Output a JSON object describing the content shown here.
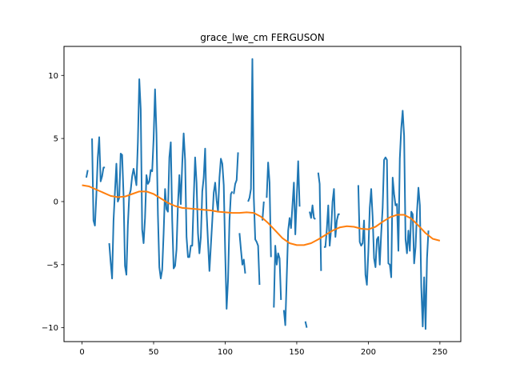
{
  "chart_data": {
    "type": "line",
    "title": "grace_lwe_cm FERGUSON",
    "xlabel": "",
    "ylabel": "",
    "xlim": [
      -12.6,
      264.6
    ],
    "ylim": [
      -11.1,
      12.3
    ],
    "xticks": [
      0,
      50,
      100,
      150,
      200,
      250
    ],
    "yticks": [
      -10,
      -5,
      0,
      5,
      10
    ],
    "grid": false,
    "legend": "none",
    "series": [
      {
        "color": "#1f77b4",
        "segments": [
          [
            [
              3,
              1.9
            ],
            [
              4,
              2.5
            ]
          ],
          [
            [
              7,
              5.0
            ],
            [
              8,
              -1.5
            ],
            [
              9,
              -1.9
            ],
            [
              10,
              0.5
            ],
            [
              11,
              3.5
            ],
            [
              12,
              5.1
            ],
            [
              13,
              1.6
            ],
            [
              14,
              2.0
            ],
            [
              15,
              2.7
            ],
            [
              16,
              2.7
            ]
          ],
          [
            [
              19,
              -3.3
            ],
            [
              20,
              -4.8
            ],
            [
              21,
              -6.1
            ],
            [
              22,
              -1.5
            ],
            [
              23,
              0.8
            ],
            [
              24,
              3.0
            ],
            [
              25,
              0.0
            ],
            [
              26,
              0.3
            ],
            [
              27,
              3.8
            ],
            [
              28,
              3.7
            ],
            [
              29,
              0.5
            ],
            [
              30,
              -5.1
            ],
            [
              31,
              -5.8
            ],
            [
              32,
              -1.9
            ],
            [
              33,
              0.5
            ],
            [
              34,
              0.9
            ],
            [
              35,
              2.0
            ],
            [
              36,
              2.6
            ],
            [
              37,
              2.0
            ],
            [
              38,
              1.3
            ],
            [
              39,
              4.7
            ],
            [
              40,
              9.7
            ],
            [
              41,
              7.3
            ],
            [
              42,
              -2.2
            ],
            [
              43,
              -3.3
            ],
            [
              44,
              -1.3
            ],
            [
              45,
              2.1
            ],
            [
              46,
              1.4
            ],
            [
              47,
              1.6
            ],
            [
              48,
              2.5
            ],
            [
              49,
              2.4
            ],
            [
              50,
              5.0
            ],
            [
              51,
              8.9
            ],
            [
              52,
              5.4
            ],
            [
              53,
              -1.0
            ],
            [
              54,
              -5.2
            ],
            [
              55,
              -6.1
            ],
            [
              56,
              -5.4
            ],
            [
              57,
              -2.5
            ],
            [
              58,
              1.0
            ],
            [
              59,
              -0.6
            ],
            [
              60,
              -0.8
            ],
            [
              61,
              3.5
            ],
            [
              62,
              4.7
            ],
            [
              63,
              -1.5
            ],
            [
              64,
              -5.3
            ],
            [
              65,
              -5.1
            ],
            [
              66,
              -3.8
            ],
            [
              67,
              -0.2
            ],
            [
              68,
              2.1
            ],
            [
              69,
              -0.2
            ],
            [
              70,
              3.0
            ],
            [
              71,
              5.4
            ],
            [
              72,
              3.3
            ],
            [
              73,
              -2.8
            ],
            [
              74,
              -4.4
            ],
            [
              75,
              -4.4
            ],
            [
              76,
              -3.5
            ],
            [
              77,
              -3.5
            ],
            [
              78,
              0.2
            ],
            [
              79,
              3.5
            ],
            [
              80,
              1.5
            ],
            [
              81,
              -2.5
            ],
            [
              82,
              -4.1
            ],
            [
              83,
              -2.8
            ],
            [
              84,
              0.8
            ],
            [
              85,
              1.9
            ],
            [
              86,
              4.2
            ],
            [
              87,
              -0.8
            ],
            [
              88,
              -3.2
            ],
            [
              89,
              -5.5
            ],
            [
              90,
              -3.5
            ],
            [
              91,
              -1.5
            ],
            [
              92,
              0.7
            ],
            [
              93,
              1.5
            ],
            [
              94,
              0.1
            ],
            [
              95,
              -0.8
            ],
            [
              96,
              1.9
            ],
            [
              97,
              3.4
            ],
            [
              98,
              3.0
            ],
            [
              99,
              1.3
            ],
            [
              100,
              -4.0
            ],
            [
              101,
              -8.5
            ],
            [
              102,
              -6.2
            ],
            [
              103,
              -1.5
            ],
            [
              104,
              0.6
            ],
            [
              105,
              0.8
            ]
          ],
          [
            [
              106,
              0.6
            ],
            [
              107,
              1.4
            ],
            [
              108,
              1.7
            ],
            [
              109,
              3.9
            ]
          ],
          [
            [
              110,
              -2.5
            ],
            [
              111,
              -3.8
            ],
            [
              112,
              -5.0
            ],
            [
              113,
              -4.6
            ],
            [
              114,
              -5.7
            ]
          ],
          [
            [
              116,
              0.0
            ],
            [
              117,
              0.3
            ],
            [
              118,
              1.0
            ],
            [
              119,
              11.3
            ],
            [
              120,
              0.3
            ],
            [
              121,
              -3.0
            ],
            [
              122,
              -3.2
            ],
            [
              123,
              -3.5
            ],
            [
              124,
              -6.6
            ]
          ],
          [
            [
              126,
              -1.5
            ],
            [
              127,
              0.0
            ]
          ],
          [
            [
              129,
              0.3
            ],
            [
              130,
              3.1
            ],
            [
              131,
              1.5
            ],
            [
              132,
              -4.4
            ]
          ],
          [
            [
              134,
              -8.4
            ],
            [
              135,
              -3.5
            ],
            [
              136,
              -5.0
            ],
            [
              137,
              -4.1
            ],
            [
              138,
              -4.5
            ],
            [
              139,
              -7.8
            ]
          ],
          [
            [
              141,
              -8.6
            ],
            [
              142,
              -9.8
            ],
            [
              143,
              -6.0
            ],
            [
              144,
              -2.3
            ],
            [
              145,
              -1.3
            ],
            [
              146,
              -2.1
            ],
            [
              147,
              -0.3
            ],
            [
              148,
              1.5
            ],
            [
              149,
              -2.6
            ],
            [
              150,
              0.3
            ],
            [
              151,
              3.2
            ],
            [
              152,
              -0.4
            ]
          ],
          [
            [
              154,
              -2.8
            ]
          ],
          [
            [
              156,
              -9.5
            ],
            [
              157,
              -10.0
            ]
          ],
          [
            [
              159,
              -0.8
            ],
            [
              160,
              -1.3
            ],
            [
              161,
              -0.3
            ],
            [
              162,
              -1.3
            ],
            [
              163,
              -1.4
            ]
          ],
          [
            [
              165,
              2.3
            ],
            [
              166,
              1.4
            ],
            [
              167,
              -5.5
            ]
          ],
          [
            [
              169,
              -3.6
            ],
            [
              170,
              -3.6
            ],
            [
              171,
              -2.2
            ],
            [
              172,
              -0.3
            ],
            [
              173,
              -3.5
            ],
            [
              174,
              -2.2
            ],
            [
              175,
              0.0
            ],
            [
              176,
              1.0
            ],
            [
              177,
              -2.8
            ],
            [
              178,
              -1.5
            ],
            [
              179,
              -1.0
            ],
            [
              180,
              -1.0
            ]
          ],
          [
            [
              193,
              1.3
            ],
            [
              194,
              -3.2
            ],
            [
              195,
              -3.5
            ],
            [
              196,
              -3.3
            ],
            [
              197,
              -1.5
            ],
            [
              198,
              -5.8
            ],
            [
              199,
              -6.6
            ],
            [
              200,
              -4.0
            ],
            [
              201,
              -0.5
            ],
            [
              202,
              1.0
            ],
            [
              203,
              -1.2
            ],
            [
              204,
              -4.5
            ],
            [
              205,
              -5.2
            ],
            [
              206,
              -3.0
            ],
            [
              207,
              -2.8
            ],
            [
              208,
              -5.0
            ],
            [
              209,
              -2.5
            ],
            [
              210,
              -0.5
            ],
            [
              211,
              3.3
            ],
            [
              212,
              3.5
            ],
            [
              213,
              3.3
            ],
            [
              214,
              -4.9
            ],
            [
              215,
              -5.0
            ],
            [
              216,
              -6.0
            ],
            [
              217,
              1.9
            ],
            [
              218,
              0.6
            ],
            [
              219,
              -0.3
            ],
            [
              220,
              -0.2
            ],
            [
              221,
              -3.9
            ],
            [
              222,
              3.4
            ],
            [
              223,
              5.8
            ],
            [
              224,
              7.2
            ],
            [
              225,
              5.2
            ],
            [
              226,
              -3.0
            ],
            [
              227,
              -4.1
            ],
            [
              228,
              -2.3
            ],
            [
              229,
              -3.9
            ],
            [
              230,
              -0.8
            ],
            [
              231,
              -1.0
            ],
            [
              232,
              -4.9
            ],
            [
              233,
              -3.6
            ],
            [
              234,
              -0.8
            ],
            [
              235,
              1.1
            ],
            [
              236,
              -0.3
            ],
            [
              237,
              -6.8
            ],
            [
              238,
              -9.9
            ],
            [
              239,
              -6.0
            ],
            [
              240,
              -10.1
            ],
            [
              241,
              -4.5
            ],
            [
              242,
              -2.3
            ]
          ]
        ]
      },
      {
        "color": "#ff7f0e",
        "segments": [
          [
            [
              0,
              1.3
            ],
            [
              5,
              1.2
            ],
            [
              10,
              0.95
            ],
            [
              15,
              0.7
            ],
            [
              20,
              0.45
            ],
            [
              25,
              0.35
            ],
            [
              30,
              0.4
            ],
            [
              35,
              0.6
            ],
            [
              40,
              0.8
            ],
            [
              45,
              0.8
            ],
            [
              50,
              0.6
            ],
            [
              55,
              0.25
            ],
            [
              60,
              -0.1
            ],
            [
              65,
              -0.35
            ],
            [
              70,
              -0.5
            ],
            [
              75,
              -0.55
            ],
            [
              80,
              -0.6
            ],
            [
              85,
              -0.65
            ],
            [
              90,
              -0.7
            ],
            [
              95,
              -0.8
            ],
            [
              100,
              -0.85
            ],
            [
              105,
              -0.9
            ],
            [
              110,
              -0.9
            ],
            [
              115,
              -0.85
            ],
            [
              120,
              -0.9
            ],
            [
              125,
              -1.2
            ],
            [
              130,
              -1.7
            ],
            [
              135,
              -2.3
            ],
            [
              140,
              -2.9
            ],
            [
              145,
              -3.3
            ],
            [
              150,
              -3.45
            ],
            [
              155,
              -3.45
            ],
            [
              160,
              -3.3
            ],
            [
              165,
              -3.0
            ],
            [
              170,
              -2.65
            ],
            [
              175,
              -2.3
            ],
            [
              180,
              -2.05
            ],
            [
              185,
              -1.95
            ],
            [
              190,
              -2.0
            ],
            [
              195,
              -2.15
            ],
            [
              200,
              -2.2
            ],
            [
              205,
              -2.0
            ],
            [
              210,
              -1.6
            ],
            [
              215,
              -1.25
            ],
            [
              220,
              -1.05
            ],
            [
              225,
              -1.05
            ],
            [
              230,
              -1.35
            ],
            [
              235,
              -1.9
            ],
            [
              240,
              -2.5
            ],
            [
              245,
              -2.95
            ],
            [
              250,
              -3.1
            ]
          ]
        ]
      }
    ]
  }
}
